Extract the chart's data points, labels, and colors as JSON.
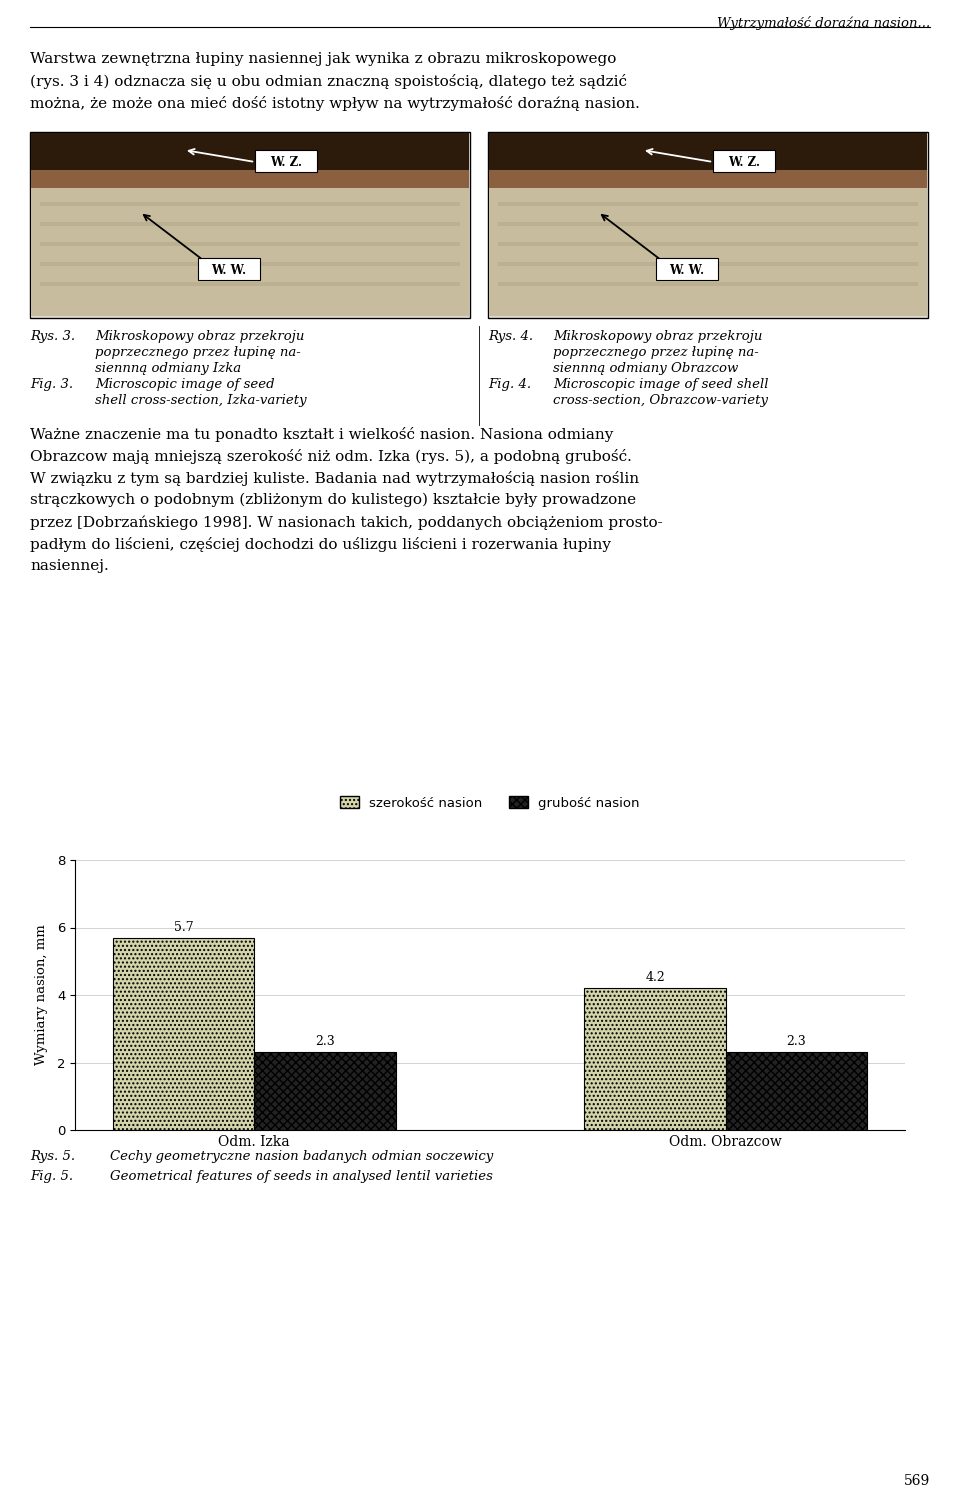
{
  "header_text": "Wytrzymałość doraźna nasion...",
  "para1_lines": [
    "Warstwa zewnętrzna łupiny nasiennej jak wynika z obrazu mikroskopowego",
    "(rys. 3 i 4) odznacza się u obu odmian znaczną spoistością, dlatego też sądzić",
    "można, że może ona mieć dość istotny wpływ na wytrzymałość doraźną nasion."
  ],
  "caption_left_lines": [
    [
      "Rys. 3.",
      "Mikroskopowy obraz przekroju"
    ],
    [
      "",
      "poprzecznego przez łupinę na-"
    ],
    [
      "",
      "siennną odmiany Izka"
    ],
    [
      "Fig. 3.",
      "Microscopic image of seed"
    ],
    [
      "",
      "shell cross-section, Izka-variety"
    ]
  ],
  "caption_right_lines": [
    [
      "Rys. 4.",
      "Mikroskopowy obraz przekroju"
    ],
    [
      "",
      "poprzecznego przez łupinę na-"
    ],
    [
      "",
      "siennną odmiany Obrazcow"
    ],
    [
      "Fig. 4.",
      "Microscopic image of seed shell"
    ],
    [
      "",
      "cross-section, Obrazcow-variety"
    ]
  ],
  "para2_lines": [
    "Ważne znaczenie ma tu ponadto kształt i wielkość nasion. Nasiona odmiany",
    "Obrazcow mają mniejszą szerokość niż odm. Izka (rys. 5), a podobną grubość.",
    "W związku z tym są bardziej kuliste. Badania nad wytrzymałością nasion roślin",
    "strączkowych o podobnym (zbliżonym do kulistego) kształcie były prowadzone",
    "przez [Dobrzańskiego 1998]. W nasionach takich, poddanych obciążeniom prosto-",
    "padłym do liścieni, częściej dochodzi do uślizgu liścieni i rozerwania łupiny",
    "nasiennej."
  ],
  "categories": [
    "Odm. Izka",
    "Odm. Obrazcow"
  ],
  "szerokost_values": [
    5.7,
    4.2
  ],
  "grubost_values": [
    2.3,
    2.3
  ],
  "ylabel": "Wymiary nasion, mm",
  "ylim": [
    0,
    8
  ],
  "yticks": [
    0,
    2,
    4,
    6,
    8
  ],
  "legend_label1": "szerokość nasion",
  "legend_label2": "grubość nasion",
  "caption_fig5_lines": [
    [
      "Rys. 5.",
      "Cechy geometryczne nasion badanych odmian soczewicy"
    ],
    [
      "Fig. 5.",
      "Geometrical features of seeds in analysed lentil varieties"
    ]
  ],
  "page_number": "569",
  "bg_color": "#ffffff"
}
